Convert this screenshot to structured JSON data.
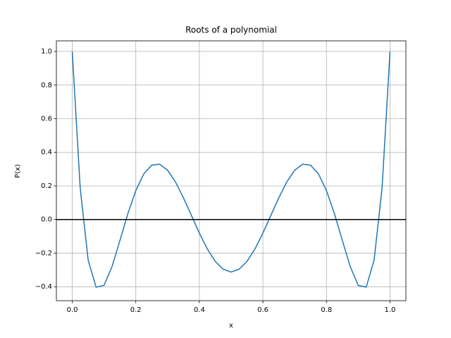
{
  "chart_data": {
    "type": "line",
    "title": "Roots of a polynomial",
    "x_label": "x",
    "y_label": "P(x)",
    "x": [
      0,
      0.025,
      0.05,
      0.075,
      0.1,
      0.125,
      0.15,
      0.175,
      0.2,
      0.225,
      0.25,
      0.275,
      0.3,
      0.325,
      0.35,
      0.375,
      0.4,
      0.425,
      0.45,
      0.475,
      0.5,
      0.525,
      0.55,
      0.575,
      0.6,
      0.625,
      0.65,
      0.675,
      0.7,
      0.725,
      0.75,
      0.775,
      0.8,
      0.825,
      0.85,
      0.875,
      0.9,
      0.925,
      0.95,
      0.975,
      1
    ],
    "series": [
      {
        "name": "P(x)",
        "color": "#1f77b4",
        "values": [
          1,
          0.187,
          -0.241,
          -0.403,
          -0.392,
          -0.281,
          -0.125,
          0.035,
          0.172,
          0.271,
          0.323,
          0.329,
          0.293,
          0.223,
          0.129,
          0.024,
          -0.081,
          -0.175,
          -0.249,
          -0.296,
          -0.3125,
          -0.296,
          -0.249,
          -0.175,
          -0.081,
          0.024,
          0.129,
          0.223,
          0.293,
          0.329,
          0.323,
          0.271,
          0.172,
          0.035,
          -0.125,
          -0.281,
          -0.392,
          -0.403,
          -0.241,
          0.187,
          1
        ]
      }
    ],
    "axhline": 0,
    "axhline_color": "#000000",
    "xlim": [
      -0.05,
      1.05
    ],
    "ylim": [
      -0.483,
      1.063
    ],
    "xticks": [
      {
        "value": 0,
        "label": "0.0"
      },
      {
        "value": 0.2,
        "label": "0.2"
      },
      {
        "value": 0.4,
        "label": "0.4"
      },
      {
        "value": 0.6,
        "label": "0.6"
      },
      {
        "value": 0.8,
        "label": "0.8"
      },
      {
        "value": 1,
        "label": "1.0"
      }
    ],
    "yticks": [
      {
        "value": -0.4,
        "label": "−0.4"
      },
      {
        "value": -0.2,
        "label": "−0.2"
      },
      {
        "value": 0,
        "label": "0.0"
      },
      {
        "value": 0.2,
        "label": "0.2"
      },
      {
        "value": 0.4,
        "label": "0.4"
      },
      {
        "value": 0.6,
        "label": "0.6"
      },
      {
        "value": 0.8,
        "label": "0.8"
      },
      {
        "value": 1,
        "label": "1.0"
      }
    ],
    "grid": true
  }
}
